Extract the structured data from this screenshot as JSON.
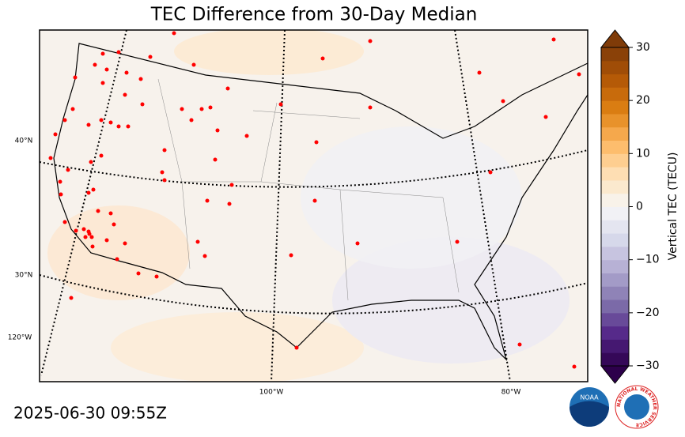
{
  "title": "TEC Difference from 30-Day Median",
  "colorbar": {
    "label": "Vertical TEC (TECU)",
    "lim": [
      -30,
      30
    ],
    "ticks": [
      30,
      20,
      10,
      0,
      {
        "value": -10,
        "label": "−10"
      },
      {
        "value": -20,
        "label": "−20"
      },
      {
        "value": -30,
        "label": "−30"
      }
    ],
    "colors": [
      "#2d004b",
      "#542788",
      "#8073ac",
      "#b2abd2",
      "#d8daeb",
      "#f7f7f7",
      "#fee0b6",
      "#fdb863",
      "#e08214",
      "#b35806",
      "#7f3b08"
    ],
    "levels": 24,
    "extend": "both"
  },
  "map": {
    "lat_labels": [
      "40°N",
      "30°N"
    ],
    "lon_labels": [
      "120°W",
      "100°W",
      "80°W"
    ]
  },
  "timestamp": "2025-06-30 09:55Z",
  "logos": {
    "noaa": "NOAA",
    "nws": "NATIONAL WEATHER SERVICE"
  }
}
